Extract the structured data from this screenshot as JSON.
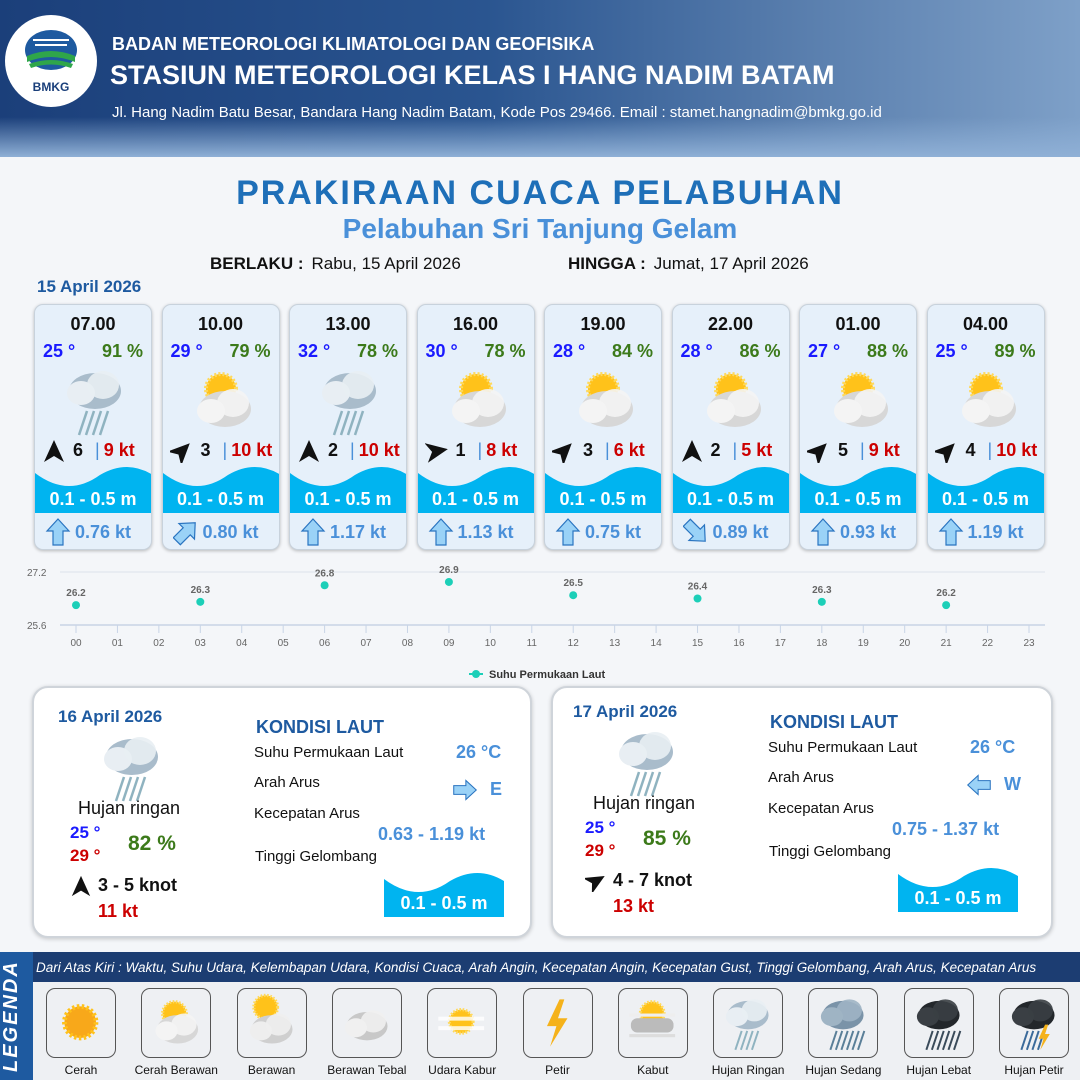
{
  "header": {
    "org": "BADAN METEOROLOGI KLIMATOLOGI DAN GEOFISIKA",
    "station": "STASIUN METEOROLOGI KELAS I HANG NADIM BATAM",
    "address": "Jl. Hang Nadim Batu Besar, Bandara Hang Nadim Batam, Kode Pos 29466. Email : stamet.hangnadim@bmkg.go.id",
    "logo_text": "BMKG"
  },
  "title": "PRAKIRAAN CUACA PELABUHAN",
  "subtitle": "Pelabuhan Sri Tanjung Gelam",
  "validity": {
    "from_label": "BERLAKU :",
    "from": "Rabu, 15 April 2026",
    "to_label": "HINGGA :",
    "to": "Jumat, 17 April 2026"
  },
  "day1": {
    "date": "15 April 2026",
    "forecasts": [
      {
        "time": "07.00",
        "temp": "25 °",
        "hum": "91 %",
        "icon": "hujan-ringan",
        "wind_dir_deg": 0,
        "wind": "6",
        "gust": "9 kt",
        "wave": "0.1 - 0.5 m",
        "current_dir_deg": 0,
        "current": "0.76 kt"
      },
      {
        "time": "10.00",
        "temp": "29 °",
        "hum": "79 %",
        "icon": "cerah-berawan",
        "wind_dir_deg": 45,
        "wind": "3",
        "gust": "10 kt",
        "wave": "0.1 - 0.5 m",
        "current_dir_deg": 45,
        "current": "0.80 kt"
      },
      {
        "time": "13.00",
        "temp": "32 °",
        "hum": "78 %",
        "icon": "hujan-ringan",
        "wind_dir_deg": 0,
        "wind": "2",
        "gust": "10 kt",
        "wave": "0.1 - 0.5 m",
        "current_dir_deg": 0,
        "current": "1.17 kt"
      },
      {
        "time": "16.00",
        "temp": "30 °",
        "hum": "78 %",
        "icon": "cerah-berawan",
        "wind_dir_deg": 80,
        "wind": "1",
        "gust": "8 kt",
        "wave": "0.1 - 0.5 m",
        "current_dir_deg": 0,
        "current": "1.13 kt"
      },
      {
        "time": "19.00",
        "temp": "28 °",
        "hum": "84 %",
        "icon": "cerah-berawan",
        "wind_dir_deg": 45,
        "wind": "3",
        "gust": "6 kt",
        "wave": "0.1 - 0.5 m",
        "current_dir_deg": 0,
        "current": "0.75 kt"
      },
      {
        "time": "22.00",
        "temp": "28 °",
        "hum": "86 %",
        "icon": "cerah-berawan",
        "wind_dir_deg": 0,
        "wind": "2",
        "gust": "5 kt",
        "wave": "0.1 - 0.5 m",
        "current_dir_deg": 135,
        "current": "0.89 kt"
      },
      {
        "time": "01.00",
        "temp": "27 °",
        "hum": "88 %",
        "icon": "cerah-berawan",
        "wind_dir_deg": 45,
        "wind": "5",
        "gust": "9 kt",
        "wave": "0.1 - 0.5 m",
        "current_dir_deg": 0,
        "current": "0.93 kt"
      },
      {
        "time": "04.00",
        "temp": "25 °",
        "hum": "89 %",
        "icon": "cerah-berawan",
        "wind_dir_deg": 45,
        "wind": "4",
        "gust": "10 kt",
        "wave": "0.1 - 0.5 m",
        "current_dir_deg": 0,
        "current": "1.19 kt"
      }
    ]
  },
  "chart_data": {
    "type": "scatter",
    "x_ticks": [
      "00",
      "01",
      "02",
      "03",
      "04",
      "05",
      "06",
      "07",
      "08",
      "09",
      "10",
      "11",
      "12",
      "13",
      "14",
      "15",
      "16",
      "17",
      "18",
      "19",
      "20",
      "21",
      "22",
      "23"
    ],
    "y_ticks": [
      "25.6",
      "27.2"
    ],
    "ylim": [
      25.6,
      27.2
    ],
    "series": [
      {
        "name": "Suhu Permukaan Laut",
        "color": "#1ccfb8",
        "x": [
          0,
          3,
          6,
          9,
          12,
          15,
          18,
          21
        ],
        "values": [
          26.2,
          26.3,
          26.8,
          26.9,
          26.5,
          26.4,
          26.3,
          26.2
        ]
      }
    ],
    "legend": "bottom",
    "grid": true
  },
  "day2": {
    "date": "16 April 2026",
    "icon": "hujan-ringan",
    "condition": "Hujan ringan",
    "tmin": "25 °",
    "tmax": "29 °",
    "hum": "82 %",
    "wind_dir_deg": 0,
    "wind": "3  - 5 knot",
    "gust": "11 kt",
    "kondisi": "KONDISI LAUT",
    "sst_label": "Suhu Permukaan Laut",
    "sst": "26 °C",
    "dir_label": "Arah Arus",
    "dir": "E",
    "dir_deg": 90,
    "speed_label": "Kecepatan Arus",
    "speed": "0.63  - 1.19 kt",
    "wave_label": "Tinggi Gelombang",
    "wave": "0.1 - 0.5 m"
  },
  "day3": {
    "date": "17 April 2026",
    "icon": "hujan-ringan",
    "condition": "Hujan ringan",
    "tmin": "25 °",
    "tmax": "29 °",
    "hum": "85 %",
    "wind_dir_deg": 60,
    "wind": "4  - 7 knot",
    "gust": "13 kt",
    "kondisi": "KONDISI LAUT",
    "sst_label": "Suhu Permukaan Laut",
    "sst": "26 °C",
    "dir_label": "Arah Arus",
    "dir": "W",
    "dir_deg": 270,
    "speed_label": "Kecepatan Arus",
    "speed": "0.75  - 1.37 kt",
    "wave_label": "Tinggi Gelombang",
    "wave": "0.1 - 0.5 m"
  },
  "legend": {
    "title": "LEGENDA",
    "description": "Dari Atas Kiri : Waktu, Suhu Udara, Kelembapan Udara, Kondisi Cuaca, Arah Angin, Kecepatan Angin, Kecepatan Gust, Tinggi Gelombang, Arah Arus, Kecepatan Arus",
    "items": [
      {
        "label": "Cerah",
        "icon": "cerah"
      },
      {
        "label": "Cerah Berawan",
        "icon": "cerah-berawan"
      },
      {
        "label": "Berawan",
        "icon": "berawan"
      },
      {
        "label": "Berawan Tebal",
        "icon": "berawan-tebal"
      },
      {
        "label": "Udara Kabur",
        "icon": "udara-kabur"
      },
      {
        "label": "Petir",
        "icon": "petir"
      },
      {
        "label": "Kabut",
        "icon": "kabut"
      },
      {
        "label": "Hujan Ringan",
        "icon": "hujan-ringan"
      },
      {
        "label": "Hujan Sedang",
        "icon": "hujan-sedang"
      },
      {
        "label": "Hujan Lebat",
        "icon": "hujan-lebat"
      },
      {
        "label": "Hujan Petir",
        "icon": "hujan-petir"
      }
    ]
  },
  "colors": {
    "wave": "#00b4f0",
    "temp": "#1a1aff",
    "humidity": "#3c7a1a",
    "gust": "#cc0000",
    "accent": "#1e5aa0"
  }
}
